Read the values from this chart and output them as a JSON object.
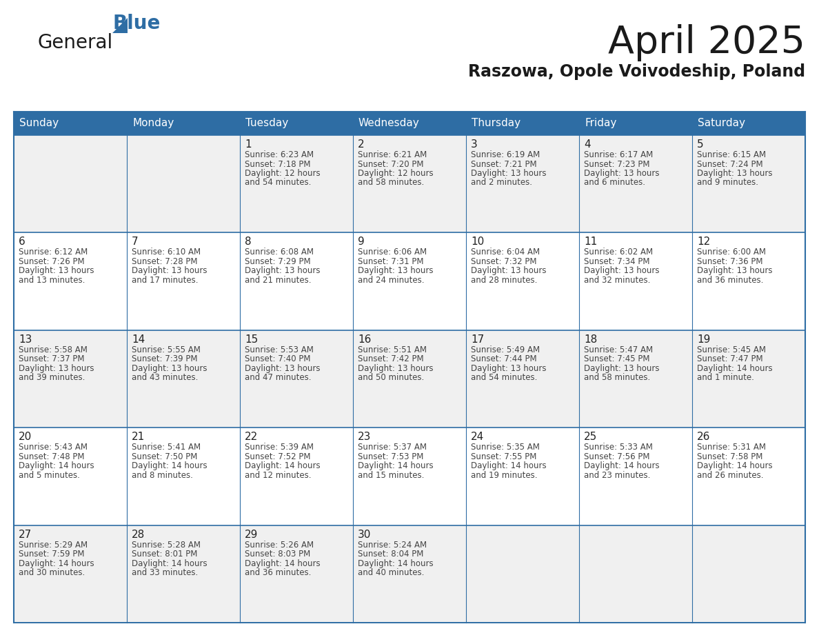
{
  "title": "April 2025",
  "subtitle": "Raszowa, Opole Voivodeship, Poland",
  "header_bg": "#2e6da4",
  "header_text": "#ffffff",
  "row_bg_odd": "#f0f0f0",
  "row_bg_even": "#ffffff",
  "cell_text": "#444444",
  "day_number_color": "#222222",
  "grid_line_color": "#2e6da4",
  "weekdays": [
    "Sunday",
    "Monday",
    "Tuesday",
    "Wednesday",
    "Thursday",
    "Friday",
    "Saturday"
  ],
  "days": [
    {
      "date": 1,
      "col": 2,
      "row": 0,
      "sunrise": "6:23 AM",
      "sunset": "7:18 PM",
      "daylight_line1": "12 hours",
      "daylight_line2": "and 54 minutes."
    },
    {
      "date": 2,
      "col": 3,
      "row": 0,
      "sunrise": "6:21 AM",
      "sunset": "7:20 PM",
      "daylight_line1": "12 hours",
      "daylight_line2": "and 58 minutes."
    },
    {
      "date": 3,
      "col": 4,
      "row": 0,
      "sunrise": "6:19 AM",
      "sunset": "7:21 PM",
      "daylight_line1": "13 hours",
      "daylight_line2": "and 2 minutes."
    },
    {
      "date": 4,
      "col": 5,
      "row": 0,
      "sunrise": "6:17 AM",
      "sunset": "7:23 PM",
      "daylight_line1": "13 hours",
      "daylight_line2": "and 6 minutes."
    },
    {
      "date": 5,
      "col": 6,
      "row": 0,
      "sunrise": "6:15 AM",
      "sunset": "7:24 PM",
      "daylight_line1": "13 hours",
      "daylight_line2": "and 9 minutes."
    },
    {
      "date": 6,
      "col": 0,
      "row": 1,
      "sunrise": "6:12 AM",
      "sunset": "7:26 PM",
      "daylight_line1": "13 hours",
      "daylight_line2": "and 13 minutes."
    },
    {
      "date": 7,
      "col": 1,
      "row": 1,
      "sunrise": "6:10 AM",
      "sunset": "7:28 PM",
      "daylight_line1": "13 hours",
      "daylight_line2": "and 17 minutes."
    },
    {
      "date": 8,
      "col": 2,
      "row": 1,
      "sunrise": "6:08 AM",
      "sunset": "7:29 PM",
      "daylight_line1": "13 hours",
      "daylight_line2": "and 21 minutes."
    },
    {
      "date": 9,
      "col": 3,
      "row": 1,
      "sunrise": "6:06 AM",
      "sunset": "7:31 PM",
      "daylight_line1": "13 hours",
      "daylight_line2": "and 24 minutes."
    },
    {
      "date": 10,
      "col": 4,
      "row": 1,
      "sunrise": "6:04 AM",
      "sunset": "7:32 PM",
      "daylight_line1": "13 hours",
      "daylight_line2": "and 28 minutes."
    },
    {
      "date": 11,
      "col": 5,
      "row": 1,
      "sunrise": "6:02 AM",
      "sunset": "7:34 PM",
      "daylight_line1": "13 hours",
      "daylight_line2": "and 32 minutes."
    },
    {
      "date": 12,
      "col": 6,
      "row": 1,
      "sunrise": "6:00 AM",
      "sunset": "7:36 PM",
      "daylight_line1": "13 hours",
      "daylight_line2": "and 36 minutes."
    },
    {
      "date": 13,
      "col": 0,
      "row": 2,
      "sunrise": "5:58 AM",
      "sunset": "7:37 PM",
      "daylight_line1": "13 hours",
      "daylight_line2": "and 39 minutes."
    },
    {
      "date": 14,
      "col": 1,
      "row": 2,
      "sunrise": "5:55 AM",
      "sunset": "7:39 PM",
      "daylight_line1": "13 hours",
      "daylight_line2": "and 43 minutes."
    },
    {
      "date": 15,
      "col": 2,
      "row": 2,
      "sunrise": "5:53 AM",
      "sunset": "7:40 PM",
      "daylight_line1": "13 hours",
      "daylight_line2": "and 47 minutes."
    },
    {
      "date": 16,
      "col": 3,
      "row": 2,
      "sunrise": "5:51 AM",
      "sunset": "7:42 PM",
      "daylight_line1": "13 hours",
      "daylight_line2": "and 50 minutes."
    },
    {
      "date": 17,
      "col": 4,
      "row": 2,
      "sunrise": "5:49 AM",
      "sunset": "7:44 PM",
      "daylight_line1": "13 hours",
      "daylight_line2": "and 54 minutes."
    },
    {
      "date": 18,
      "col": 5,
      "row": 2,
      "sunrise": "5:47 AM",
      "sunset": "7:45 PM",
      "daylight_line1": "13 hours",
      "daylight_line2": "and 58 minutes."
    },
    {
      "date": 19,
      "col": 6,
      "row": 2,
      "sunrise": "5:45 AM",
      "sunset": "7:47 PM",
      "daylight_line1": "14 hours",
      "daylight_line2": "and 1 minute."
    },
    {
      "date": 20,
      "col": 0,
      "row": 3,
      "sunrise": "5:43 AM",
      "sunset": "7:48 PM",
      "daylight_line1": "14 hours",
      "daylight_line2": "and 5 minutes."
    },
    {
      "date": 21,
      "col": 1,
      "row": 3,
      "sunrise": "5:41 AM",
      "sunset": "7:50 PM",
      "daylight_line1": "14 hours",
      "daylight_line2": "and 8 minutes."
    },
    {
      "date": 22,
      "col": 2,
      "row": 3,
      "sunrise": "5:39 AM",
      "sunset": "7:52 PM",
      "daylight_line1": "14 hours",
      "daylight_line2": "and 12 minutes."
    },
    {
      "date": 23,
      "col": 3,
      "row": 3,
      "sunrise": "5:37 AM",
      "sunset": "7:53 PM",
      "daylight_line1": "14 hours",
      "daylight_line2": "and 15 minutes."
    },
    {
      "date": 24,
      "col": 4,
      "row": 3,
      "sunrise": "5:35 AM",
      "sunset": "7:55 PM",
      "daylight_line1": "14 hours",
      "daylight_line2": "and 19 minutes."
    },
    {
      "date": 25,
      "col": 5,
      "row": 3,
      "sunrise": "5:33 AM",
      "sunset": "7:56 PM",
      "daylight_line1": "14 hours",
      "daylight_line2": "and 23 minutes."
    },
    {
      "date": 26,
      "col": 6,
      "row": 3,
      "sunrise": "5:31 AM",
      "sunset": "7:58 PM",
      "daylight_line1": "14 hours",
      "daylight_line2": "and 26 minutes."
    },
    {
      "date": 27,
      "col": 0,
      "row": 4,
      "sunrise": "5:29 AM",
      "sunset": "7:59 PM",
      "daylight_line1": "14 hours",
      "daylight_line2": "and 30 minutes."
    },
    {
      "date": 28,
      "col": 1,
      "row": 4,
      "sunrise": "5:28 AM",
      "sunset": "8:01 PM",
      "daylight_line1": "14 hours",
      "daylight_line2": "and 33 minutes."
    },
    {
      "date": 29,
      "col": 2,
      "row": 4,
      "sunrise": "5:26 AM",
      "sunset": "8:03 PM",
      "daylight_line1": "14 hours",
      "daylight_line2": "and 36 minutes."
    },
    {
      "date": 30,
      "col": 3,
      "row": 4,
      "sunrise": "5:24 AM",
      "sunset": "8:04 PM",
      "daylight_line1": "14 hours",
      "daylight_line2": "and 40 minutes."
    }
  ],
  "fig_width": 11.88,
  "fig_height": 9.18,
  "dpi": 100
}
